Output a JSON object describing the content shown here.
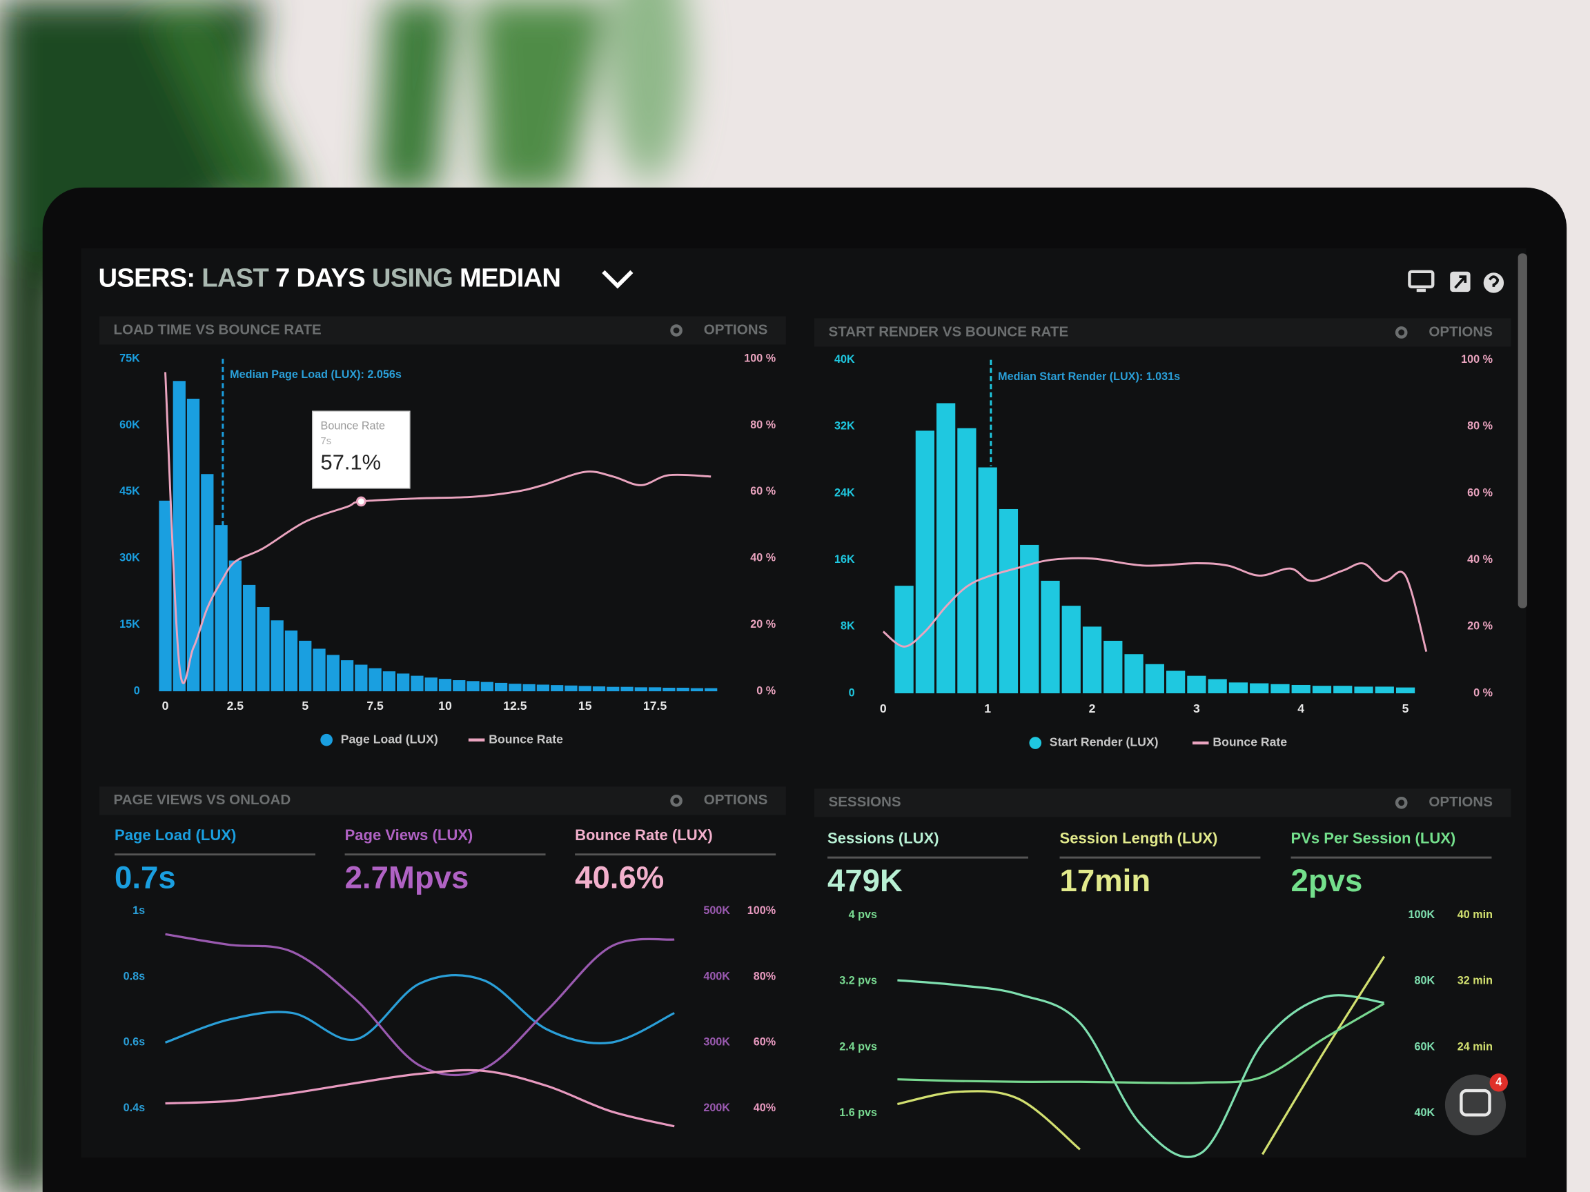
{
  "header": {
    "title_parts": [
      "USERS:",
      "LAST",
      "7 DAYS",
      "USING",
      "MEDIAN"
    ]
  },
  "notification_count": 4,
  "chart_data": [
    {
      "type": "histogram",
      "title": "LOAD TIME VS BOUNCE RATE",
      "options_label": "OPTIONS",
      "bins": [
        -0.25,
        0.25,
        0.75,
        1.25,
        1.75,
        2.25,
        2.75,
        3.25,
        3.75,
        4.25,
        4.75,
        5.25,
        5.75,
        6.25,
        6.75,
        7.25,
        7.75,
        8.25,
        8.75,
        9.25,
        9.75,
        10.25,
        10.75,
        11.25,
        11.75,
        12.25,
        12.75,
        13.25,
        13.75,
        14.25,
        14.75,
        15.25,
        15.75,
        16.25,
        16.75,
        17.25,
        17.75,
        18.25,
        18.75,
        19.25,
        19.75
      ],
      "series": [
        {
          "name": "Page Load (LUX)",
          "color": "#1a9fe0",
          "values": [
            43000,
            70000,
            66000,
            49000,
            37500,
            29500,
            24000,
            19000,
            16000,
            13700,
            11400,
            9600,
            8200,
            7000,
            6000,
            5200,
            4500,
            4000,
            3500,
            3100,
            2800,
            2500,
            2300,
            2100,
            1900,
            1700,
            1600,
            1500,
            1400,
            1300,
            1200,
            1100,
            1000,
            1000,
            900,
            900,
            800,
            800,
            700,
            700
          ]
        },
        {
          "name": "Bounce Rate",
          "color": "#eaa4bf",
          "axis": "y2",
          "x": [
            0,
            0.5,
            1,
            1.5,
            2,
            2.5,
            3.5,
            5,
            6.5,
            7,
            9,
            11,
            12.5,
            13.5,
            15,
            16,
            17,
            18,
            19.5
          ],
          "values": [
            96,
            8,
            13,
            25,
            33,
            39,
            43,
            51,
            55.5,
            57.1,
            58,
            58.5,
            60,
            62,
            66,
            64.6,
            62,
            65,
            64.6
          ]
        }
      ],
      "xlim": [
        -0.25,
        19.75
      ],
      "xticks": [
        0,
        2.5,
        5,
        7.5,
        10,
        12.5,
        15,
        17.5
      ],
      "ylim": [
        0,
        75000
      ],
      "yticks": [
        0,
        {
          "value": 15000,
          "label": "15K"
        },
        {
          "value": 30000,
          "label": "30K"
        },
        {
          "value": 45000,
          "label": "45K"
        },
        {
          "value": 60000,
          "label": "60K"
        },
        {
          "value": 75000,
          "label": "75K"
        }
      ],
      "y2lim": [
        0,
        100
      ],
      "y2ticks": [
        {
          "value": 0,
          "label": "0 %"
        },
        {
          "value": 20,
          "label": "20 %"
        },
        {
          "value": 40,
          "label": "40 %"
        },
        {
          "value": 60,
          "label": "60 %"
        },
        {
          "value": 80,
          "label": "80 %"
        },
        {
          "value": 100,
          "label": "100 %"
        }
      ],
      "median": {
        "value": 2.056,
        "label": "Median Page Load (LUX): 2.056s"
      },
      "tooltip": {
        "title": "Bounce Rate",
        "x_label": "7s",
        "x": 7,
        "value": 57.1,
        "value_label": "57.1%"
      }
    },
    {
      "type": "histogram",
      "title": "START RENDER VS BOUNCE RATE",
      "options_label": "OPTIONS",
      "bins": [
        0.1,
        0.3,
        0.5,
        0.7,
        0.9,
        1.1,
        1.3,
        1.5,
        1.7,
        1.9,
        2.1,
        2.3,
        2.5,
        2.7,
        2.9,
        3.1,
        3.3,
        3.5,
        3.7,
        3.9,
        4.1,
        4.3,
        4.5,
        4.7,
        4.9,
        5.1
      ],
      "series": [
        {
          "name": "Start Render (LUX)",
          "color": "#1fc8e0",
          "values": [
            12900,
            31500,
            34800,
            31800,
            27100,
            22100,
            17800,
            13500,
            10500,
            8000,
            6300,
            4700,
            3500,
            2700,
            2100,
            1700,
            1300,
            1200,
            1100,
            1000,
            900,
            900,
            800,
            800,
            700
          ]
        },
        {
          "name": "Bounce Rate",
          "color": "#eaa4bf",
          "axis": "y2",
          "x": [
            0,
            0.2,
            0.4,
            0.6,
            0.8,
            1,
            1.3,
            1.6,
            2,
            2.5,
            3,
            3.3,
            3.6,
            3.9,
            4.1,
            4.4,
            4.6,
            4.8,
            5,
            5.2
          ],
          "values": [
            18.5,
            14,
            18.5,
            26,
            32,
            35,
            37.7,
            40,
            40.4,
            38.3,
            39,
            38.3,
            35.3,
            37.4,
            33.7,
            36.8,
            38.9,
            33.7,
            35.3,
            12.5
          ]
        }
      ],
      "xlim": [
        -0.05,
        5.25
      ],
      "xticks": [
        0,
        1,
        2,
        3,
        4,
        5
      ],
      "ylim": [
        0,
        40000
      ],
      "yticks": [
        0,
        {
          "value": 8000,
          "label": "8K"
        },
        {
          "value": 16000,
          "label": "16K"
        },
        {
          "value": 24000,
          "label": "24K"
        },
        {
          "value": 32000,
          "label": "32K"
        },
        {
          "value": 40000,
          "label": "40K"
        }
      ],
      "y2lim": [
        0,
        100
      ],
      "y2ticks": [
        {
          "value": 0,
          "label": "0 %"
        },
        {
          "value": 20,
          "label": "20 %"
        },
        {
          "value": 40,
          "label": "40 %"
        },
        {
          "value": 60,
          "label": "60 %"
        },
        {
          "value": 80,
          "label": "80 %"
        },
        {
          "value": 100,
          "label": "100 %"
        }
      ],
      "median": {
        "value": 1.031,
        "label": "Median Start Render (LUX): 1.031s"
      }
    },
    {
      "type": "line",
      "title": "PAGE VIEWS VS ONLOAD",
      "options_label": "OPTIONS",
      "metrics": [
        {
          "label": "Page Load (LUX)",
          "value": "0.7s",
          "color": "#1a9fe0"
        },
        {
          "label": "Page Views (LUX)",
          "value": "2.7Mpvs",
          "color": "#b062c4"
        },
        {
          "label": "Bounce Rate (LUX)",
          "value": "40.6%",
          "color": "#f2b0cc"
        }
      ],
      "categories": [
        null,
        null,
        null,
        null,
        null,
        null,
        null,
        null,
        null
      ],
      "series": [
        {
          "color": "#2a9fd8",
          "axis": "y",
          "values": [
            0.6,
            0.67,
            0.69,
            0.61,
            0.78,
            0.79,
            0.64,
            0.6,
            0.69
          ]
        },
        {
          "color": "#9a5ab0",
          "axis": "y2",
          "values": [
            465000,
            449000,
            438000,
            365000,
            265000,
            260000,
            349000,
            446000,
            457000
          ]
        },
        {
          "color": "#e89ac0",
          "axis": "y3",
          "values": [
            41.5,
            42.2,
            44.6,
            47.7,
            50.5,
            51.4,
            46.8,
            39.1,
            34.5
          ]
        }
      ],
      "ylim": [
        0.25,
        1
      ],
      "yticks": [
        {
          "value": 0.4,
          "label": "0.4s"
        },
        {
          "value": 0.6,
          "label": "0.6s"
        },
        {
          "value": 0.8,
          "label": "0.8s"
        },
        {
          "value": 1,
          "label": "1s"
        }
      ],
      "y2lim": [
        125000,
        500000
      ],
      "y2ticks": [
        {
          "value": 200000,
          "label": "200K"
        },
        {
          "value": 300000,
          "label": "300K"
        },
        {
          "value": 400000,
          "label": "400K"
        },
        {
          "value": 500000,
          "label": "500K"
        }
      ],
      "y3lim": [
        25,
        100
      ],
      "y3ticks": [
        {
          "value": 40,
          "label": "40%"
        },
        {
          "value": 60,
          "label": "60%"
        },
        {
          "value": 80,
          "label": "80%"
        },
        {
          "value": 100,
          "label": "100%"
        }
      ]
    },
    {
      "type": "line",
      "title": "SESSIONS",
      "options_label": "OPTIONS",
      "metrics": [
        {
          "label": "Sessions (LUX)",
          "value": "479K",
          "color": "#b8f0d4"
        },
        {
          "label": "Session Length (LUX)",
          "value": "17min",
          "color": "#e2ea8c"
        },
        {
          "label": "PVs Per Session (LUX)",
          "value": "2pvs",
          "color": "#74e08c"
        }
      ],
      "categories": [
        null,
        null,
        null,
        null,
        null,
        null,
        null,
        null,
        null
      ],
      "series": [
        {
          "color": "#7fe0b0",
          "axis": "y2",
          "values": [
            80300,
            78800,
            76000,
            67400,
            36600,
            28000,
            61200,
            75100,
            73500
          ]
        },
        {
          "color": "#d2e070",
          "axis": "y3",
          "values": [
            17.1,
            18.6,
            17.7,
            11.6,
            null,
            null,
            11.0,
            23.3,
            35.0
          ]
        },
        {
          "color": "#78d890",
          "axis": "y",
          "values": [
            2.01,
            1.99,
            1.98,
            1.98,
            1.97,
            1.97,
            2.04,
            2.5,
            2.93
          ]
        }
      ],
      "ylim": [
        1,
        4
      ],
      "yticks": [
        {
          "value": 1.6,
          "label": "1.6 pvs"
        },
        {
          "value": 2.4,
          "label": "2.4 pvs"
        },
        {
          "value": 3.2,
          "label": "3.2 pvs"
        },
        {
          "value": 4,
          "label": "4 pvs"
        }
      ],
      "y2lim": [
        25000,
        100000
      ],
      "y2ticks": [
        {
          "value": 40000,
          "label": "40K"
        },
        {
          "value": 60000,
          "label": "60K"
        },
        {
          "value": 80000,
          "label": "80K"
        },
        {
          "value": 100000,
          "label": "100K"
        }
      ],
      "y3lim": [
        10,
        40
      ],
      "y3ticks": [
        {
          "value": 24,
          "label": "24 min"
        },
        {
          "value": 32,
          "label": "32 min"
        },
        {
          "value": 40,
          "label": "40 min"
        }
      ]
    }
  ]
}
